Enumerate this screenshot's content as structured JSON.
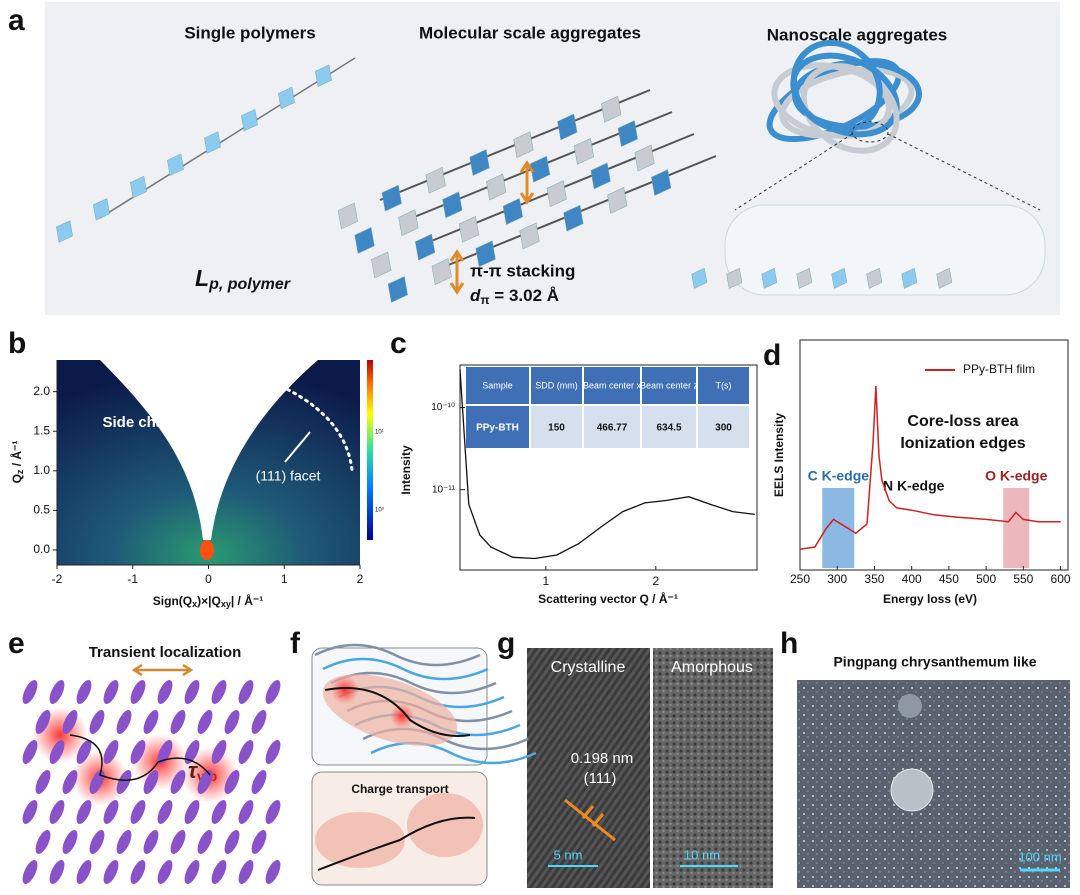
{
  "panel_a": {
    "label": "a",
    "single_polymers": "Single polymers",
    "molecular": "Molecular scale aggregates",
    "nanoscale": "Nanoscale aggregates",
    "lp": "L",
    "lp_sub": "p, polymer",
    "stacking": "π-π stacking",
    "d": "d",
    "d_sub": "π",
    "d_value": " = 3.02 Å"
  },
  "panel_b": {
    "label": "b",
    "xlim": [
      -2,
      2
    ],
    "ylim": [
      -0.19,
      2.4
    ],
    "xticks": [
      -2,
      -1,
      0,
      1,
      2
    ],
    "yticks": [
      {
        "value": 0,
        "label": "0.0"
      },
      0.5,
      {
        "value": 1,
        "label": "1.0"
      },
      1.5,
      {
        "value": 2,
        "label": "2.0"
      }
    ],
    "xlabel": {
      "a": "Sign(Q",
      "a_sub": "x",
      "b": ")×|Q",
      "b_sub": "xy",
      "c": "| / Å⁻¹"
    },
    "ylabel": {
      "main": "Q",
      "sub": "z",
      "rest": " / Å⁻¹"
    },
    "side_chain": "Side chain",
    "facet": "(111) facet",
    "colorbar_labels": [
      "10¹",
      "10⁰"
    ]
  },
  "panel_c": {
    "label": "c",
    "table": {
      "header": [
        "Sample",
        "SDD (mm)",
        "Beam center x",
        "Beam center z",
        "T(s)"
      ],
      "row": [
        "PPy-BTH",
        "150",
        "466.77",
        "634.5",
        "300"
      ]
    },
    "xlim": [
      0.22,
      2.92
    ],
    "xticks": [
      1,
      2
    ],
    "ylim": [
      1.05e-12,
      3.3e-10
    ],
    "log_y": true,
    "yticks": [
      {
        "value": 1e-10,
        "label": "10⁻¹⁰"
      },
      {
        "value": 1e-11,
        "label": "10⁻¹¹"
      }
    ],
    "x": [
      0.22,
      0.3,
      0.4,
      0.5,
      0.7,
      0.9,
      1.1,
      1.3,
      1.5,
      1.7,
      1.9,
      2.1,
      2.3,
      2.5,
      2.7,
      2.9
    ],
    "values": [
      2.9e-10,
      6.6e-12,
      2.8e-12,
      2e-12,
      1.5e-12,
      1.45e-12,
      1.6e-12,
      2.2e-12,
      3.5e-12,
      5.4e-12,
      6.9e-12,
      7.4e-12,
      8.2e-12,
      6.6e-12,
      5.4e-12,
      5e-12
    ],
    "color": "#111111",
    "xlabel": "Scattering vector Q / Å⁻¹",
    "ylabel": "Intensity"
  },
  "panel_d": {
    "label": "d",
    "series_name": "PPy-BTH film",
    "color": "#cc2222",
    "xlim": [
      250,
      610
    ],
    "xticks": [
      250,
      300,
      350,
      400,
      450,
      500,
      550,
      600
    ],
    "ylim": [
      0,
      100
    ],
    "x": [
      250,
      270,
      285,
      295,
      310,
      325,
      340,
      348,
      352,
      356,
      360,
      370,
      380,
      400,
      430,
      460,
      500,
      530,
      540,
      550,
      570,
      600
    ],
    "values": [
      9,
      10,
      18,
      22,
      19,
      16,
      20,
      55,
      80,
      50,
      39,
      30,
      27,
      26,
      24,
      23,
      22,
      21,
      25,
      22,
      21,
      21
    ],
    "core_loss": "Core-loss area",
    "ionization": "Ionization edges",
    "n_edge": "N K-edge",
    "regions": [
      {
        "name": "C K-edge",
        "range": [
          280,
          323
        ],
        "color": "#5b9bd5"
      },
      {
        "name": "O K-edge",
        "range": [
          523,
          558
        ],
        "color": "#e49aa3"
      }
    ],
    "xlabel": "Energy loss (eV)",
    "ylabel": "EELS Intensity"
  },
  "panel_e": {
    "label": "e",
    "title": "Transient localization",
    "tau": "τ",
    "tau_sub": "vib"
  },
  "panel_f": {
    "label": "f",
    "caption": "Charge transport"
  },
  "panel_g": {
    "label": "g",
    "crystalline": "Crystalline",
    "amorphous": "Amorphous",
    "spacing": "0.198 nm",
    "plane": "(111)",
    "scale_left": "5 nm",
    "scale_right": "10 nm"
  },
  "panel_h": {
    "label": "h",
    "title": "Pingpang chrysanthemum like",
    "scale": "100 nm"
  }
}
